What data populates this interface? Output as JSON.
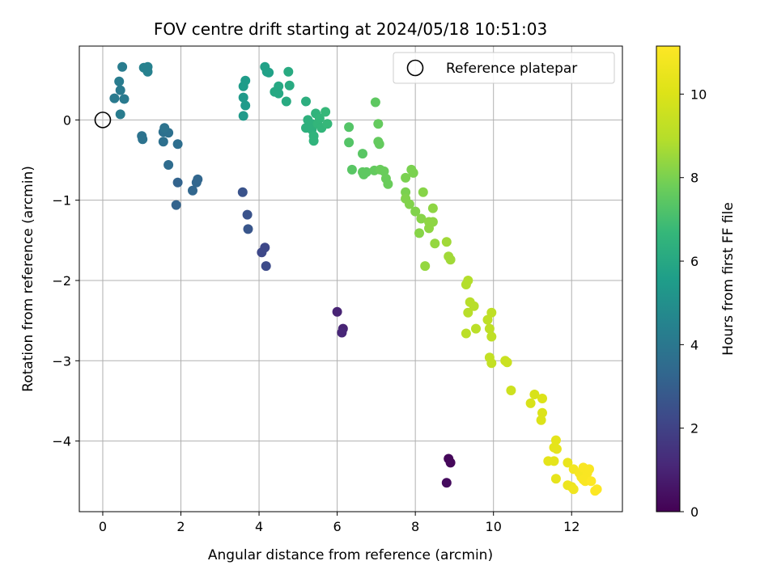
{
  "chart_data": {
    "type": "scatter",
    "title": "FOV centre drift starting at 2024/05/18 10:51:03",
    "xlabel": "Angular distance from reference (arcmin)",
    "ylabel": "Rotation from reference (arcmin)",
    "xlim": [
      -0.6,
      13.3
    ],
    "ylim": [
      -4.88,
      0.92
    ],
    "xticks": [
      0,
      2,
      4,
      6,
      8,
      10,
      12
    ],
    "yticks": [
      -4,
      -3,
      -2,
      -1,
      0
    ],
    "grid": true,
    "legend": {
      "label": "Reference platepar",
      "placement": "top-right"
    },
    "colorbar": {
      "label": "Hours from first FF file",
      "colormap": "viridis",
      "min": 0,
      "max": 11.15,
      "ticks": [
        0,
        2,
        4,
        6,
        8,
        10
      ]
    },
    "reference": {
      "x": 0,
      "y": 0
    },
    "points": [
      {
        "x": 8.85,
        "y": -4.22,
        "c": 0.2
      },
      {
        "x": 8.9,
        "y": -4.27,
        "c": 0.2
      },
      {
        "x": 8.8,
        "y": -4.52,
        "c": 0.3
      },
      {
        "x": 6.0,
        "y": -2.39,
        "c": 1.0
      },
      {
        "x": 6.15,
        "y": -2.6,
        "c": 1.0
      },
      {
        "x": 6.12,
        "y": -2.65,
        "c": 1.1
      },
      {
        "x": 4.15,
        "y": -1.59,
        "c": 2.2
      },
      {
        "x": 4.07,
        "y": -1.65,
        "c": 2.2
      },
      {
        "x": 4.18,
        "y": -1.82,
        "c": 2.3
      },
      {
        "x": 3.58,
        "y": -0.9,
        "c": 2.6
      },
      {
        "x": 3.7,
        "y": -1.18,
        "c": 2.6
      },
      {
        "x": 3.72,
        "y": -1.36,
        "c": 2.7
      },
      {
        "x": 1.88,
        "y": -1.06,
        "c": 3.2
      },
      {
        "x": 1.92,
        "y": -0.78,
        "c": 3.2
      },
      {
        "x": 2.3,
        "y": -0.88,
        "c": 3.3
      },
      {
        "x": 2.4,
        "y": -0.78,
        "c": 3.3
      },
      {
        "x": 2.43,
        "y": -0.74,
        "c": 3.3
      },
      {
        "x": 1.68,
        "y": -0.56,
        "c": 3.5
      },
      {
        "x": 1.92,
        "y": -0.3,
        "c": 3.6
      },
      {
        "x": 1.55,
        "y": -0.27,
        "c": 3.7
      },
      {
        "x": 1.55,
        "y": -0.15,
        "c": 3.7
      },
      {
        "x": 1.68,
        "y": -0.16,
        "c": 3.7
      },
      {
        "x": 1.58,
        "y": -0.1,
        "c": 3.8
      },
      {
        "x": 1.0,
        "y": -0.2,
        "c": 3.8
      },
      {
        "x": 1.02,
        "y": -0.24,
        "c": 3.8
      },
      {
        "x": 0.3,
        "y": 0.27,
        "c": 4.1
      },
      {
        "x": 0.55,
        "y": 0.26,
        "c": 4.1
      },
      {
        "x": 0.45,
        "y": 0.37,
        "c": 4.1
      },
      {
        "x": 0.42,
        "y": 0.48,
        "c": 4.2
      },
      {
        "x": 0.5,
        "y": 0.66,
        "c": 4.2
      },
      {
        "x": 0.45,
        "y": 0.07,
        "c": 4.2
      },
      {
        "x": 1.05,
        "y": 0.65,
        "c": 4.4
      },
      {
        "x": 1.15,
        "y": 0.66,
        "c": 4.4
      },
      {
        "x": 1.15,
        "y": 0.6,
        "c": 4.4
      },
      {
        "x": 3.6,
        "y": 0.05,
        "c": 5.4
      },
      {
        "x": 3.65,
        "y": 0.18,
        "c": 5.4
      },
      {
        "x": 3.6,
        "y": 0.28,
        "c": 5.4
      },
      {
        "x": 3.6,
        "y": 0.42,
        "c": 5.5
      },
      {
        "x": 3.65,
        "y": 0.49,
        "c": 5.5
      },
      {
        "x": 4.15,
        "y": 0.66,
        "c": 5.7
      },
      {
        "x": 4.2,
        "y": 0.6,
        "c": 5.7
      },
      {
        "x": 4.25,
        "y": 0.59,
        "c": 5.7
      },
      {
        "x": 4.4,
        "y": 0.35,
        "c": 6.0
      },
      {
        "x": 4.5,
        "y": 0.33,
        "c": 6.0
      },
      {
        "x": 4.5,
        "y": 0.42,
        "c": 6.0
      },
      {
        "x": 4.75,
        "y": 0.6,
        "c": 6.1
      },
      {
        "x": 4.78,
        "y": 0.43,
        "c": 6.1
      },
      {
        "x": 4.7,
        "y": 0.23,
        "c": 6.1
      },
      {
        "x": 5.2,
        "y": 0.23,
        "c": 6.3
      },
      {
        "x": 5.2,
        "y": -0.1,
        "c": 6.4
      },
      {
        "x": 5.25,
        "y": 0.0,
        "c": 6.4
      },
      {
        "x": 5.35,
        "y": -0.05,
        "c": 6.4
      },
      {
        "x": 5.4,
        "y": -0.2,
        "c": 6.5
      },
      {
        "x": 5.4,
        "y": -0.26,
        "c": 6.5
      },
      {
        "x": 5.45,
        "y": 0.08,
        "c": 6.5
      },
      {
        "x": 5.5,
        "y": -0.05,
        "c": 6.6
      },
      {
        "x": 5.55,
        "y": 0.02,
        "c": 6.6
      },
      {
        "x": 5.6,
        "y": -0.1,
        "c": 6.6
      },
      {
        "x": 5.7,
        "y": 0.1,
        "c": 6.7
      },
      {
        "x": 5.75,
        "y": -0.05,
        "c": 6.7
      },
      {
        "x": 5.35,
        "y": -0.12,
        "c": 6.4
      },
      {
        "x": 6.3,
        "y": -0.09,
        "c": 7.3
      },
      {
        "x": 6.3,
        "y": -0.28,
        "c": 7.3
      },
      {
        "x": 6.38,
        "y": -0.62,
        "c": 7.4
      },
      {
        "x": 6.65,
        "y": -0.42,
        "c": 7.4
      },
      {
        "x": 6.65,
        "y": -0.65,
        "c": 7.5
      },
      {
        "x": 6.68,
        "y": -0.68,
        "c": 7.5
      },
      {
        "x": 6.75,
        "y": -0.65,
        "c": 7.5
      },
      {
        "x": 6.95,
        "y": -0.63,
        "c": 7.6
      },
      {
        "x": 6.98,
        "y": 0.22,
        "c": 7.5
      },
      {
        "x": 7.05,
        "y": -0.05,
        "c": 7.6
      },
      {
        "x": 7.05,
        "y": -0.27,
        "c": 7.6
      },
      {
        "x": 7.08,
        "y": -0.3,
        "c": 7.6
      },
      {
        "x": 7.1,
        "y": -0.62,
        "c": 7.7
      },
      {
        "x": 7.2,
        "y": -0.64,
        "c": 7.7
      },
      {
        "x": 7.25,
        "y": -0.73,
        "c": 7.7
      },
      {
        "x": 7.3,
        "y": -0.8,
        "c": 7.7
      },
      {
        "x": 7.75,
        "y": -0.72,
        "c": 8.0
      },
      {
        "x": 7.9,
        "y": -0.62,
        "c": 8.0
      },
      {
        "x": 7.95,
        "y": -0.66,
        "c": 8.0
      },
      {
        "x": 7.75,
        "y": -0.9,
        "c": 8.0
      },
      {
        "x": 7.75,
        "y": -0.98,
        "c": 8.1
      },
      {
        "x": 7.85,
        "y": -1.05,
        "c": 8.1
      },
      {
        "x": 8.0,
        "y": -1.14,
        "c": 8.1
      },
      {
        "x": 8.1,
        "y": -1.41,
        "c": 8.2
      },
      {
        "x": 8.15,
        "y": -1.23,
        "c": 8.2
      },
      {
        "x": 8.2,
        "y": -0.9,
        "c": 8.2
      },
      {
        "x": 8.35,
        "y": -1.27,
        "c": 8.3
      },
      {
        "x": 8.35,
        "y": -1.35,
        "c": 8.3
      },
      {
        "x": 8.45,
        "y": -1.27,
        "c": 8.3
      },
      {
        "x": 8.45,
        "y": -1.1,
        "c": 8.3
      },
      {
        "x": 8.5,
        "y": -1.54,
        "c": 8.4
      },
      {
        "x": 8.25,
        "y": -1.82,
        "c": 8.4
      },
      {
        "x": 8.8,
        "y": -1.52,
        "c": 8.6
      },
      {
        "x": 8.85,
        "y": -1.7,
        "c": 8.6
      },
      {
        "x": 8.9,
        "y": -1.74,
        "c": 8.6
      },
      {
        "x": 9.3,
        "y": -2.05,
        "c": 8.9
      },
      {
        "x": 9.35,
        "y": -2.0,
        "c": 8.9
      },
      {
        "x": 9.4,
        "y": -2.27,
        "c": 9.0
      },
      {
        "x": 9.35,
        "y": -2.4,
        "c": 9.0
      },
      {
        "x": 9.5,
        "y": -2.32,
        "c": 9.0
      },
      {
        "x": 9.55,
        "y": -2.6,
        "c": 9.1
      },
      {
        "x": 9.3,
        "y": -2.66,
        "c": 9.1
      },
      {
        "x": 9.85,
        "y": -2.49,
        "c": 9.2
      },
      {
        "x": 9.9,
        "y": -2.6,
        "c": 9.2
      },
      {
        "x": 9.95,
        "y": -2.4,
        "c": 9.2
      },
      {
        "x": 9.95,
        "y": -2.7,
        "c": 9.2
      },
      {
        "x": 9.9,
        "y": -2.96,
        "c": 9.3
      },
      {
        "x": 9.95,
        "y": -3.03,
        "c": 9.3
      },
      {
        "x": 10.3,
        "y": -3.0,
        "c": 9.5
      },
      {
        "x": 10.35,
        "y": -3.02,
        "c": 9.5
      },
      {
        "x": 10.45,
        "y": -3.37,
        "c": 9.6
      },
      {
        "x": 10.95,
        "y": -3.53,
        "c": 9.9
      },
      {
        "x": 11.05,
        "y": -3.42,
        "c": 9.9
      },
      {
        "x": 11.25,
        "y": -3.47,
        "c": 10.0
      },
      {
        "x": 11.25,
        "y": -3.65,
        "c": 10.0
      },
      {
        "x": 11.22,
        "y": -3.74,
        "c": 10.0
      },
      {
        "x": 11.4,
        "y": -4.25,
        "c": 10.3
      },
      {
        "x": 11.55,
        "y": -4.25,
        "c": 10.3
      },
      {
        "x": 11.55,
        "y": -4.08,
        "c": 10.3
      },
      {
        "x": 11.6,
        "y": -3.99,
        "c": 10.3
      },
      {
        "x": 11.62,
        "y": -4.1,
        "c": 10.3
      },
      {
        "x": 11.6,
        "y": -4.47,
        "c": 10.4
      },
      {
        "x": 11.9,
        "y": -4.27,
        "c": 10.5
      },
      {
        "x": 11.9,
        "y": -4.55,
        "c": 10.6
      },
      {
        "x": 12.0,
        "y": -4.57,
        "c": 10.6
      },
      {
        "x": 12.05,
        "y": -4.6,
        "c": 10.7
      },
      {
        "x": 12.05,
        "y": -4.35,
        "c": 10.8
      },
      {
        "x": 12.2,
        "y": -4.4,
        "c": 10.9
      },
      {
        "x": 12.25,
        "y": -4.45,
        "c": 10.9
      },
      {
        "x": 12.3,
        "y": -4.33,
        "c": 11.0
      },
      {
        "x": 12.35,
        "y": -4.5,
        "c": 11.0
      },
      {
        "x": 12.4,
        "y": -4.4,
        "c": 11.0
      },
      {
        "x": 12.45,
        "y": -4.35,
        "c": 11.0
      },
      {
        "x": 12.5,
        "y": -4.5,
        "c": 11.1
      },
      {
        "x": 12.6,
        "y": -4.62,
        "c": 11.1
      },
      {
        "x": 12.65,
        "y": -4.6,
        "c": 11.1
      },
      {
        "x": 12.3,
        "y": -4.48,
        "c": 11.0
      }
    ]
  }
}
